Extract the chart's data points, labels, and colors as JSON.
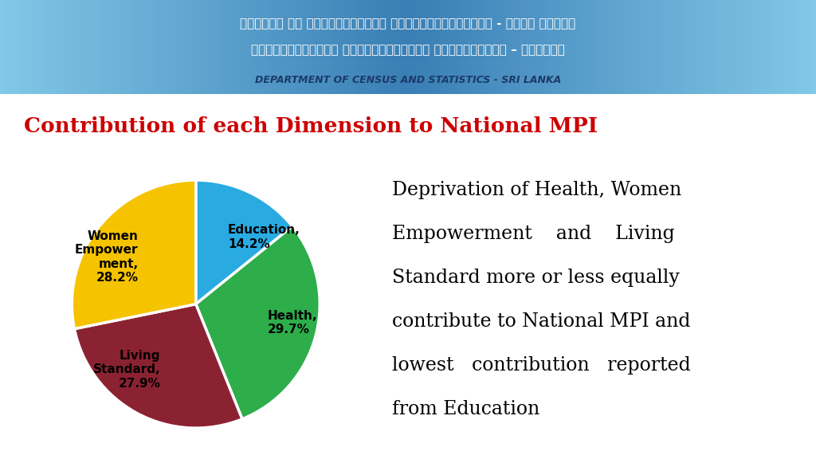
{
  "title": "Contribution of each Dimension to National MPI",
  "title_color": "#cc0000",
  "title_fontsize": 19,
  "pie_labels": [
    "Education,\n14.2%",
    "Health,\n29.7%",
    "Living\nStandard,\n27.9%",
    "Women\nEmpower\nment,\n28.2%"
  ],
  "pie_values": [
    14.2,
    29.7,
    27.9,
    28.2
  ],
  "pie_colors": [
    "#29ABE2",
    "#2EAD4B",
    "#8B2232",
    "#F5C300"
  ],
  "pie_startangle": 90,
  "description_lines": [
    "Deprivation of Health, Women",
    "Empowerment    and    Living",
    "Standard more or less equally",
    "contribute to National MPI and",
    "lowest   contribution   reported",
    "from Education"
  ],
  "description_fontsize": 17,
  "header_bg_color1": "#3A8DC5",
  "header_bg_color2": "#82C4E8",
  "bg_color": "#FFFFFF",
  "label_fontsize": 11,
  "label_fontweight": "bold",
  "label_color": "#000000",
  "header_line1": "ජනලේඁන හා සංංක්‍යාලේඁන දෙපාර්තමේන්තුව - ශ්‍රී ලංකාව",
  "header_line2": "தொகைமதிப்பு புள்ளிவிபரத் திணைக்களம் – இலங்கை",
  "header_line3": "DEPARTMENT OF CENSUS AND STATISTICS - SRI LANKA"
}
